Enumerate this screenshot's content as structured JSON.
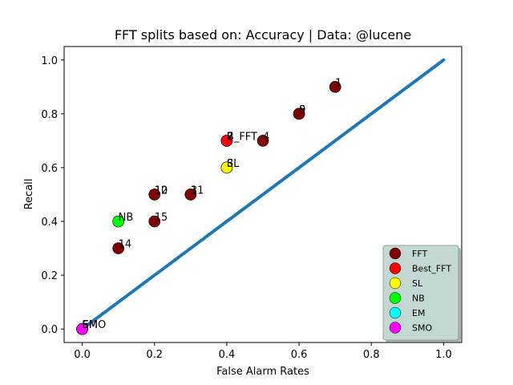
{
  "chart_data": {
    "type": "scatter",
    "title": "FFT splits based on: Accuracy  |  Data: @lucene",
    "xlabel": "False Alarm Rates",
    "ylabel": "Recall",
    "xlim": [
      -0.05,
      1.05
    ],
    "ylim": [
      -0.05,
      1.05
    ],
    "xticks": [
      "0.0",
      "0.2",
      "0.4",
      "0.6",
      "0.8",
      "1.0"
    ],
    "yticks": [
      "0.0",
      "0.2",
      "0.4",
      "0.6",
      "0.8",
      "1.0"
    ],
    "grid": false,
    "legend_position": "lower right",
    "diagonal": {
      "x": [
        0,
        1
      ],
      "y": [
        0,
        1
      ],
      "color": "#1f77b4"
    },
    "series": [
      {
        "name": "FFT",
        "color": "#800000",
        "points": [
          {
            "x": 0.7,
            "y": 0.9,
            "label": "1"
          },
          {
            "x": 0.6,
            "y": 0.8,
            "label": "9"
          },
          {
            "x": 0.6,
            "y": 0.8,
            "label": "5"
          },
          {
            "x": 0.5,
            "y": 0.7,
            "label": "4"
          },
          {
            "x": 0.4,
            "y": 0.7,
            "label": "2"
          },
          {
            "x": 0.4,
            "y": 0.7,
            "label": "7"
          },
          {
            "x": 0.4,
            "y": 0.6,
            "label": "8"
          },
          {
            "x": 0.3,
            "y": 0.5,
            "label": "3"
          },
          {
            "x": 0.3,
            "y": 0.5,
            "label": "11"
          },
          {
            "x": 0.2,
            "y": 0.5,
            "label": "10"
          },
          {
            "x": 0.2,
            "y": 0.5,
            "label": "12"
          },
          {
            "x": 0.2,
            "y": 0.4,
            "label": "15"
          },
          {
            "x": 0.1,
            "y": 0.3,
            "label": "14"
          },
          {
            "x": 0.0,
            "y": 0.0,
            "label": "6"
          }
        ]
      },
      {
        "name": "Best_FFT",
        "color": "#ff0000",
        "points": [
          {
            "x": 0.4,
            "y": 0.7,
            "label": "B_FFT"
          }
        ]
      },
      {
        "name": "SL",
        "color": "#ffff00",
        "points": [
          {
            "x": 0.4,
            "y": 0.6,
            "label": "SL"
          }
        ]
      },
      {
        "name": "NB",
        "color": "#00ff00",
        "points": [
          {
            "x": 0.1,
            "y": 0.4,
            "label": "NB"
          }
        ]
      },
      {
        "name": "EM",
        "color": "#00ffff",
        "points": [
          {
            "x": 0.0,
            "y": 0.0,
            "label": "EM"
          }
        ]
      },
      {
        "name": "SMO",
        "color": "#ff00ff",
        "points": [
          {
            "x": 0.0,
            "y": 0.0,
            "label": "SMO"
          }
        ]
      }
    ],
    "legend_entries": [
      "FFT",
      "Best_FFT",
      "SL",
      "NB",
      "EM",
      "SMO"
    ]
  }
}
